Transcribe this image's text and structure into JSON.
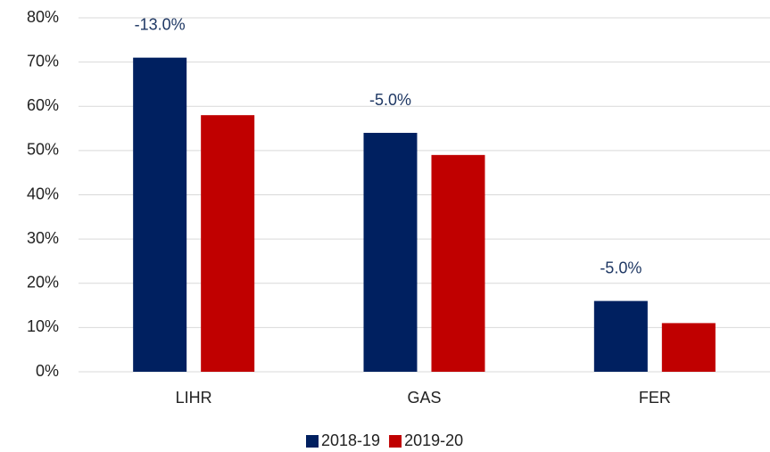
{
  "chart_data": {
    "type": "bar",
    "categories": [
      "LIHR",
      "GAS",
      "FER"
    ],
    "series": [
      {
        "name": "2018-19",
        "color": "#002060",
        "values": [
          71,
          54,
          16
        ]
      },
      {
        "name": "2019-20",
        "color": "#c00000",
        "values": [
          58,
          49,
          11
        ]
      }
    ],
    "annotations": [
      "-13.0%",
      "-5.0%",
      "-5.0%"
    ],
    "annotation_color": "#1f3864",
    "ylim": [
      0,
      80
    ],
    "yticks": [
      {
        "value": 0,
        "label": "0%"
      },
      {
        "value": 10,
        "label": "10%"
      },
      {
        "value": 20,
        "label": "20%"
      },
      {
        "value": 30,
        "label": "30%"
      },
      {
        "value": 40,
        "label": "40%"
      },
      {
        "value": 50,
        "label": "50%"
      },
      {
        "value": 60,
        "label": "60%"
      },
      {
        "value": 70,
        "label": "70%"
      },
      {
        "value": 80,
        "label": "80%"
      }
    ],
    "grid": true,
    "legend": "bottom"
  }
}
